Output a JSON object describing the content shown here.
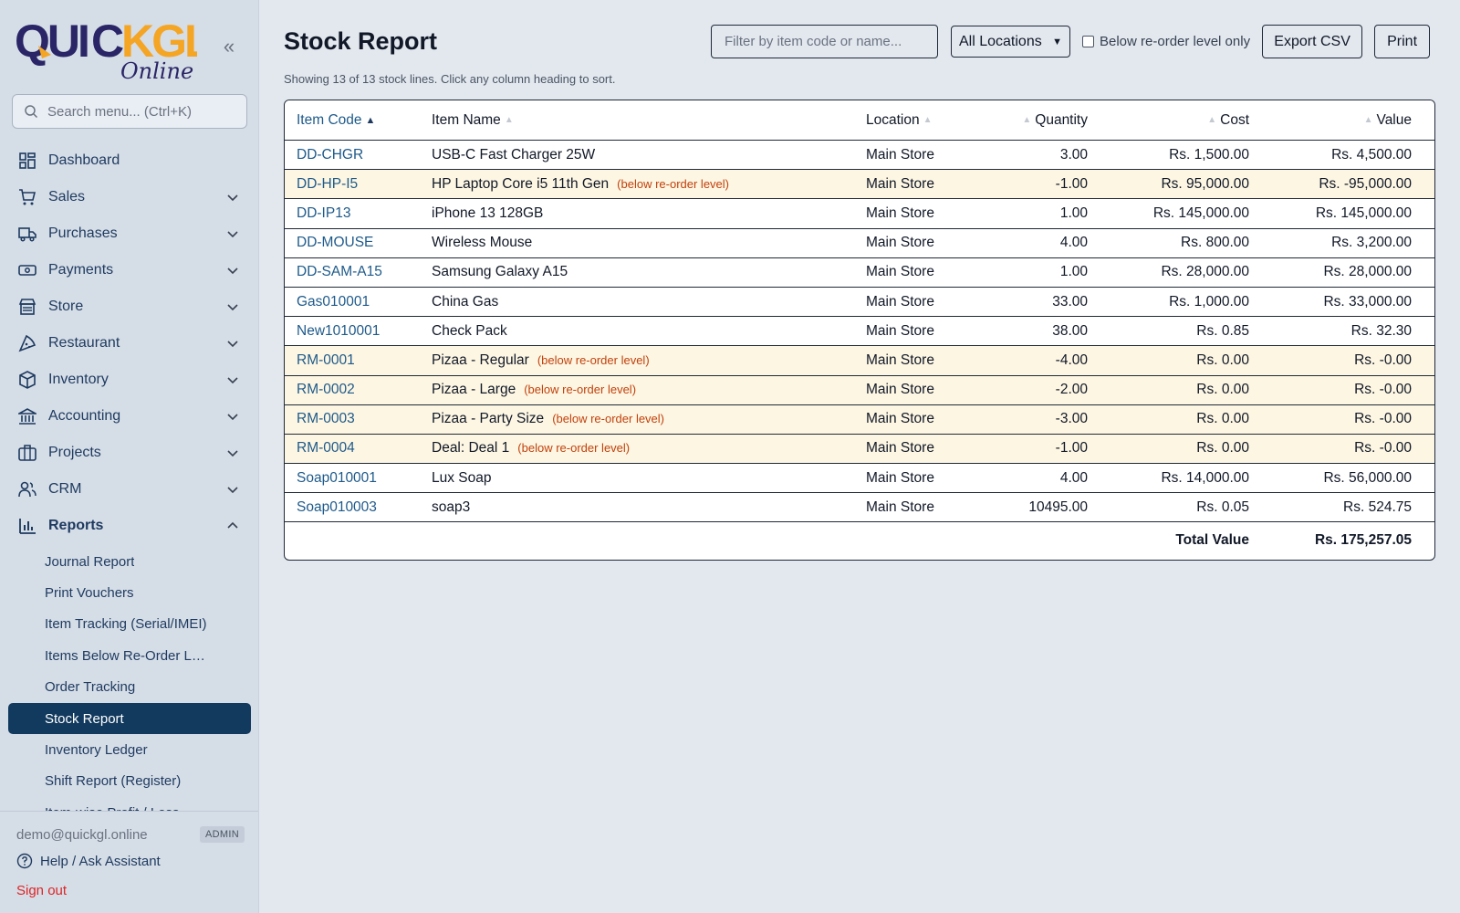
{
  "brand": {
    "logo_main": "QUICKGL",
    "logo_sub": "Online",
    "accent": "#f5a524",
    "primary": "#123a5e"
  },
  "sidebar": {
    "search_placeholder": "Search menu... (Ctrl+K)",
    "items": [
      {
        "label": "Dashboard",
        "icon": "dashboard-icon"
      },
      {
        "label": "Sales",
        "icon": "cart-icon"
      },
      {
        "label": "Purchases",
        "icon": "truck-icon"
      },
      {
        "label": "Payments",
        "icon": "money-icon"
      },
      {
        "label": "Store",
        "icon": "store-icon"
      },
      {
        "label": "Restaurant",
        "icon": "pizza-icon"
      },
      {
        "label": "Inventory",
        "icon": "box-icon"
      },
      {
        "label": "Accounting",
        "icon": "bank-icon"
      },
      {
        "label": "Projects",
        "icon": "briefcase-icon"
      },
      {
        "label": "CRM",
        "icon": "users-icon"
      },
      {
        "label": "Reports",
        "icon": "bar-chart-icon"
      }
    ],
    "reports_sub": [
      "Journal Report",
      "Print Vouchers",
      "Item Tracking (Serial/IMEI)",
      "Items Below Re-Order L…",
      "Order Tracking",
      "Stock Report",
      "Inventory Ledger",
      "Shift Report (Register)",
      "Item-wise Profit / Loss"
    ],
    "footer": {
      "email": "demo@quickgl.online",
      "role": "ADMIN",
      "help": "Help / Ask Assistant",
      "signout": "Sign out"
    }
  },
  "header": {
    "title": "Stock Report",
    "subtitle": "Showing 13 of 13 stock lines. Click any column heading to sort.",
    "filter_placeholder": "Filter by item code or name...",
    "location_selected": "All Locations",
    "below_checkbox_label": "Below re-order level only",
    "export_label": "Export CSV",
    "print_label": "Print"
  },
  "table": {
    "columns": [
      "Item Code",
      "Item Name",
      "Location",
      "Quantity",
      "Cost",
      "Value"
    ],
    "below_label": "(below re-order level)",
    "rows": [
      {
        "code": "DD-CHGR",
        "name": "USB-C Fast Charger 25W",
        "below": false,
        "location": "Main Store",
        "qty": "3.00",
        "cost": "Rs. 1,500.00",
        "value": "Rs. 4,500.00"
      },
      {
        "code": "DD-HP-I5",
        "name": "HP Laptop Core i5 11th Gen",
        "below": true,
        "location": "Main Store",
        "qty": "-1.00",
        "cost": "Rs. 95,000.00",
        "value": "Rs. -95,000.00"
      },
      {
        "code": "DD-IP13",
        "name": "iPhone 13 128GB",
        "below": false,
        "location": "Main Store",
        "qty": "1.00",
        "cost": "Rs. 145,000.00",
        "value": "Rs. 145,000.00"
      },
      {
        "code": "DD-MOUSE",
        "name": "Wireless Mouse",
        "below": false,
        "location": "Main Store",
        "qty": "4.00",
        "cost": "Rs. 800.00",
        "value": "Rs. 3,200.00"
      },
      {
        "code": "DD-SAM-A15",
        "name": "Samsung Galaxy A15",
        "below": false,
        "location": "Main Store",
        "qty": "1.00",
        "cost": "Rs. 28,000.00",
        "value": "Rs. 28,000.00"
      },
      {
        "code": "Gas010001",
        "name": "China Gas",
        "below": false,
        "location": "Main Store",
        "qty": "33.00",
        "cost": "Rs. 1,000.00",
        "value": "Rs. 33,000.00"
      },
      {
        "code": "New1010001",
        "name": "Check Pack",
        "below": false,
        "location": "Main Store",
        "qty": "38.00",
        "cost": "Rs. 0.85",
        "value": "Rs. 32.30"
      },
      {
        "code": "RM-0001",
        "name": "Pizaa - Regular",
        "below": true,
        "location": "Main Store",
        "qty": "-4.00",
        "cost": "Rs. 0.00",
        "value": "Rs. -0.00"
      },
      {
        "code": "RM-0002",
        "name": "Pizaa - Large",
        "below": true,
        "location": "Main Store",
        "qty": "-2.00",
        "cost": "Rs. 0.00",
        "value": "Rs. -0.00"
      },
      {
        "code": "RM-0003",
        "name": "Pizaa - Party Size",
        "below": true,
        "location": "Main Store",
        "qty": "-3.00",
        "cost": "Rs. 0.00",
        "value": "Rs. -0.00"
      },
      {
        "code": "RM-0004",
        "name": "Deal: Deal 1",
        "below": true,
        "location": "Main Store",
        "qty": "-1.00",
        "cost": "Rs. 0.00",
        "value": "Rs. -0.00"
      },
      {
        "code": "Soap010001",
        "name": "Lux Soap",
        "below": false,
        "location": "Main Store",
        "qty": "4.00",
        "cost": "Rs. 14,000.00",
        "value": "Rs. 56,000.00"
      },
      {
        "code": "Soap010003",
        "name": "soap3",
        "below": false,
        "location": "Main Store",
        "qty": "10495.00",
        "cost": "Rs. 0.05",
        "value": "Rs. 524.75"
      }
    ],
    "total_label": "Total Value",
    "total_value": "Rs. 175,257.05"
  }
}
